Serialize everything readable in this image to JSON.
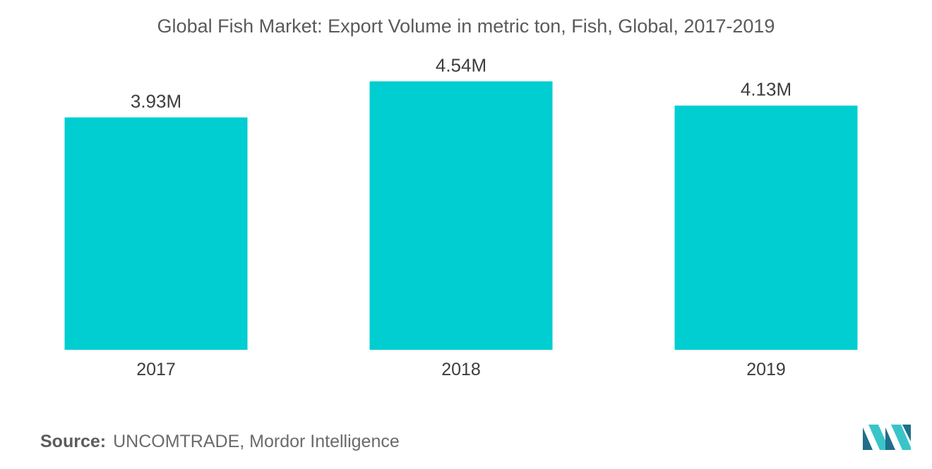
{
  "chart_data": {
    "type": "bar",
    "title": "Global Fish Market: Export Volume in metric ton, Fish, Global, 2017-2019",
    "categories": [
      "2017",
      "2018",
      "2019"
    ],
    "values": [
      3.93,
      4.54,
      4.13
    ],
    "value_labels": [
      "3.93M",
      "4.54M",
      "4.13M"
    ],
    "xlabel": "",
    "ylabel": "",
    "ylim": [
      0,
      5.2
    ],
    "grid": false,
    "legend": "none",
    "bar_color": "#00ced1"
  },
  "source": {
    "label": "Source:",
    "text": "UNCOMTRADE, Mordor Intelligence"
  },
  "logo": {
    "icon": "mordor-intelligence-logo-icon",
    "colors": [
      "#1f6f8b",
      "#39c5c8"
    ]
  }
}
